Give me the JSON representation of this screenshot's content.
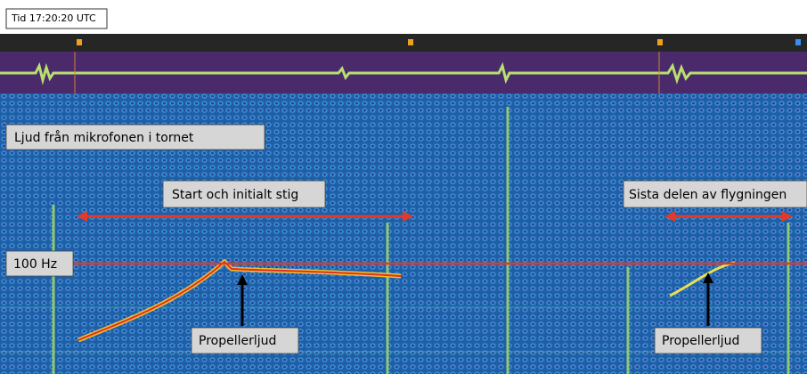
{
  "header": {
    "time_label": "Tid 17:20:20 UTC"
  },
  "annotations": {
    "source": "Ljud från mikrofonen i tornet",
    "start": "Start och initialt stig",
    "end": "Sista delen av flygningen",
    "frequency": "100 Hz",
    "propeller_left": "Propellerljud",
    "propeller_right": "Propellerljud"
  }
}
